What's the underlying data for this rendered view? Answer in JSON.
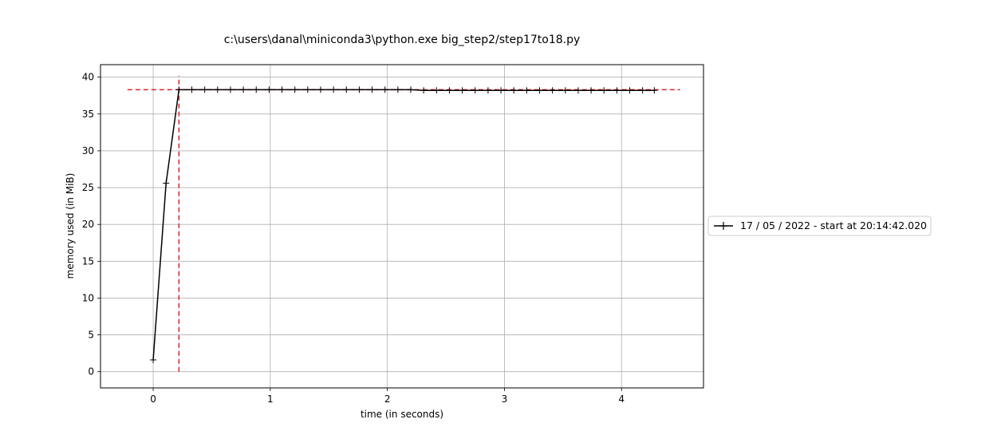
{
  "chart_data": {
    "type": "line",
    "title": "c:\\users\\danal\\miniconda3\\python.exe big_step2/step17to18.py",
    "xlabel": "time (in seconds)",
    "ylabel": "memory used (in MiB)",
    "xlim": [
      -0.45,
      4.7
    ],
    "ylim": [
      -2.2,
      41.7
    ],
    "x_ticks": [
      0,
      1,
      2,
      3,
      4
    ],
    "y_ticks": [
      0,
      5,
      10,
      15,
      20,
      25,
      30,
      35,
      40
    ],
    "x_tick_labels": [
      "0",
      "1",
      "2",
      "3",
      "4"
    ],
    "y_tick_labels": [
      "0",
      "5",
      "10",
      "15",
      "20",
      "25",
      "30",
      "35",
      "40"
    ],
    "grid": true,
    "legend_position": "center-right outside",
    "series": [
      {
        "name": "17 / 05 / 2022 - start at 20:14:42.020",
        "color": "#000000",
        "marker": "plus",
        "x": [
          0.0,
          0.11,
          0.22,
          0.33,
          0.44,
          0.55,
          0.66,
          0.77,
          0.88,
          0.99,
          1.1,
          1.21,
          1.32,
          1.43,
          1.54,
          1.65,
          1.76,
          1.87,
          1.98,
          2.09,
          2.2,
          2.31,
          2.42,
          2.53,
          2.64,
          2.75,
          2.86,
          2.97,
          3.08,
          3.19,
          3.3,
          3.41,
          3.52,
          3.63,
          3.74,
          3.85,
          3.96,
          4.07,
          4.18,
          4.28
        ],
        "y": [
          1.6,
          25.6,
          38.3,
          38.3,
          38.3,
          38.3,
          38.3,
          38.3,
          38.3,
          38.3,
          38.3,
          38.3,
          38.3,
          38.3,
          38.3,
          38.3,
          38.3,
          38.3,
          38.3,
          38.3,
          38.3,
          38.2,
          38.2,
          38.2,
          38.2,
          38.2,
          38.2,
          38.2,
          38.2,
          38.2,
          38.2,
          38.2,
          38.2,
          38.2,
          38.2,
          38.2,
          38.2,
          38.2,
          38.2,
          38.2
        ]
      }
    ],
    "reference_lines": [
      {
        "orientation": "horizontal",
        "value": 38.3,
        "from": -0.22,
        "to": 4.5,
        "color": "#d62728",
        "style": "dashed"
      },
      {
        "orientation": "vertical",
        "value": 0.22,
        "from": 0,
        "to": 40.2,
        "color": "#d62728",
        "style": "dashed"
      }
    ]
  }
}
